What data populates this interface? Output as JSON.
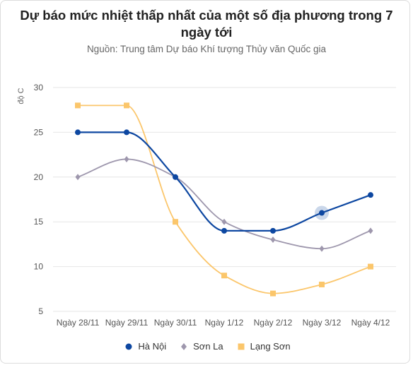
{
  "title": "Dự báo mức nhiệt thấp nhất của một số địa phương trong 7 ngày tới",
  "subtitle": "Nguồn: Trung tâm Dự báo Khí tượng Thủy văn Quốc gia",
  "chart_data": {
    "type": "line",
    "ylabel": "độ C",
    "xlabel": "",
    "ylim": [
      5,
      30
    ],
    "yticks": [
      5,
      10,
      15,
      20,
      25,
      30
    ],
    "grid": true,
    "legend_position": "bottom",
    "categories": [
      "Ngày 28/11",
      "Ngày 29/11",
      "Ngày 30/11",
      "Ngày 1/12",
      "Ngày 2/12",
      "Ngày 3/12",
      "Ngày 4/12"
    ],
    "series": [
      {
        "name": "Hà Nội",
        "color": "#0d47a1",
        "marker": "circle",
        "values": [
          25,
          25,
          20,
          14,
          14,
          16,
          18
        ]
      },
      {
        "name": "Sơn La",
        "color": "#9e97ad",
        "marker": "diamond",
        "values": [
          20,
          22,
          20,
          15,
          13,
          12,
          14
        ]
      },
      {
        "name": "Lạng Sơn",
        "color": "#fbc66b",
        "marker": "square",
        "values": [
          28,
          28,
          15,
          9,
          7,
          8,
          10
        ]
      }
    ],
    "highlight": {
      "series": "Hà Nội",
      "category": "Ngày 3/12"
    }
  }
}
